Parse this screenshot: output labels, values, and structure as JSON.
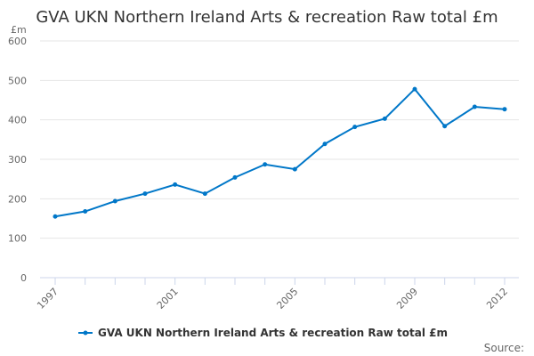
{
  "chart_data": {
    "type": "line",
    "title": "GVA UKN Northern Ireland Arts & recreation Raw total £m",
    "ylabel": "£m",
    "xlabel": "",
    "ylim": [
      0,
      600
    ],
    "yticks": [
      0,
      100,
      200,
      300,
      400,
      500,
      600
    ],
    "xticks": [
      1997,
      2001,
      2005,
      2009,
      2012
    ],
    "grid": true,
    "legend_position": "bottom",
    "series": [
      {
        "name": "GVA UKN Northern Ireland Arts & recreation Raw total £m",
        "color": "#0077c8",
        "x": [
          1997,
          1998,
          1999,
          2000,
          2001,
          2002,
          2003,
          2004,
          2005,
          2006,
          2007,
          2008,
          2009,
          2010,
          2011,
          2012
        ],
        "values": [
          155,
          168,
          194,
          213,
          236,
          213,
          254,
          287,
          275,
          339,
          382,
          403,
          478,
          384,
          433,
          427
        ]
      }
    ],
    "credit": "Source:"
  }
}
